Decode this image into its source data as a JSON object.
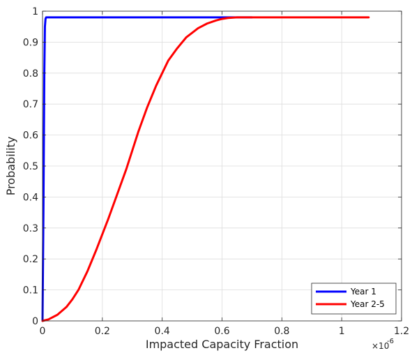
{
  "chart_data": {
    "type": "line",
    "xlabel": "Impacted Capacity Fraction",
    "ylabel": "Probability",
    "x_exponent_label": "×10",
    "x_exponent_power": "-6",
    "xlim": [
      0,
      1.2
    ],
    "ylim": [
      0,
      1
    ],
    "x_ticks": [
      0,
      0.2,
      0.4,
      0.6,
      0.8,
      1,
      1.2
    ],
    "x_tick_labels": [
      "0",
      "0.2",
      "0.4",
      "0.6",
      "0.8",
      "1",
      "1.2"
    ],
    "y_ticks": [
      0,
      0.1,
      0.2,
      0.3,
      0.4,
      0.5,
      0.6,
      0.7,
      0.8,
      0.9,
      1
    ],
    "y_tick_labels": [
      "0",
      "0.1",
      "0.2",
      "0.3",
      "0.4",
      "0.5",
      "0.6",
      "0.7",
      "0.8",
      "0.9",
      "1"
    ],
    "grid": true,
    "legend_position": "bottom-right",
    "series": [
      {
        "name": "Year 1",
        "color": "#0000ff",
        "x": [
          0,
          0.003,
          0.006,
          0.008,
          0.01,
          0.012,
          0.015,
          0.05,
          0.2,
          0.4,
          0.6,
          0.7
        ],
        "y": [
          0,
          0.35,
          0.8,
          0.95,
          0.975,
          0.98,
          0.98,
          0.98,
          0.98,
          0.98,
          0.98,
          0.98
        ]
      },
      {
        "name": "Year 2-5",
        "color": "#ff0000",
        "x": [
          0,
          0.02,
          0.05,
          0.08,
          0.1,
          0.12,
          0.15,
          0.18,
          0.2,
          0.22,
          0.25,
          0.28,
          0.3,
          0.32,
          0.35,
          0.38,
          0.4,
          0.42,
          0.45,
          0.48,
          0.5,
          0.52,
          0.55,
          0.58,
          0.6,
          0.62,
          0.65,
          0.7,
          0.75,
          0.8,
          0.9,
          1.0,
          1.09
        ],
        "y": [
          0,
          0.005,
          0.02,
          0.045,
          0.07,
          0.1,
          0.16,
          0.23,
          0.28,
          0.33,
          0.41,
          0.49,
          0.55,
          0.61,
          0.69,
          0.76,
          0.8,
          0.84,
          0.88,
          0.915,
          0.93,
          0.945,
          0.96,
          0.97,
          0.975,
          0.978,
          0.98,
          0.98,
          0.98,
          0.98,
          0.98,
          0.98,
          0.98
        ]
      }
    ]
  }
}
